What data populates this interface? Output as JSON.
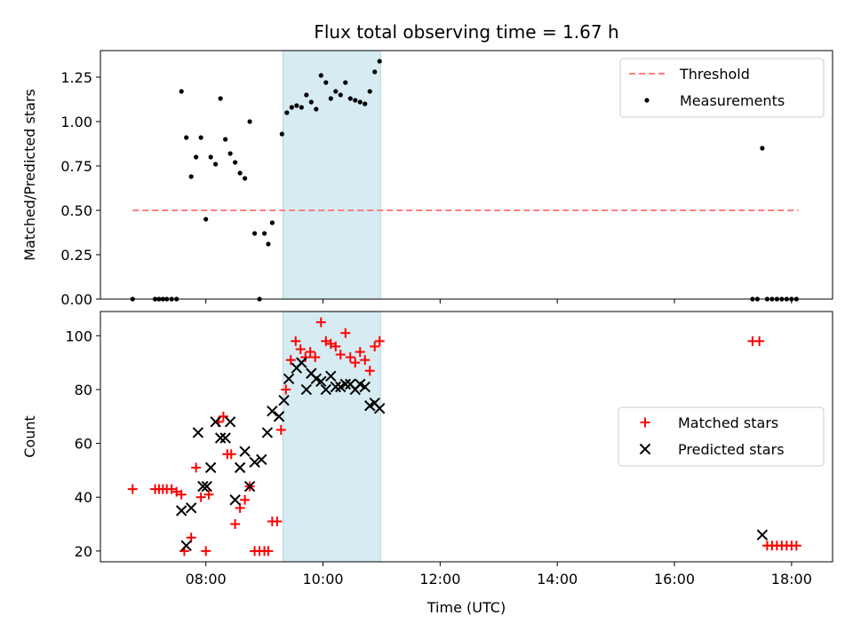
{
  "chart_data": [
    {
      "type": "scatter",
      "title": "Flux total observing time = 1.67 h",
      "xlabel": "",
      "ylabel": "Matched/Predicted stars",
      "xlim": [
        "06:12",
        "18:42"
      ],
      "ylim": [
        0,
        1.4
      ],
      "yticks": [
        "0.00",
        "0.25",
        "0.50",
        "0.75",
        "1.00",
        "1.25"
      ],
      "highlight_span": [
        "09:19",
        "10:59"
      ],
      "legend": {
        "position": "top-right",
        "entries": [
          "Threshold",
          "Measurements"
        ]
      },
      "series": [
        {
          "name": "Threshold",
          "style": "dashed line",
          "color": "#ff7f7f",
          "points": [
            [
              "06:45",
              0.5
            ],
            [
              "18:07",
              0.5
            ]
          ]
        },
        {
          "name": "Measurements",
          "style": "dots",
          "color": "#000000",
          "points": [
            [
              "06:45",
              0.0
            ],
            [
              "07:08",
              0.0
            ],
            [
              "07:12",
              0.0
            ],
            [
              "07:16",
              0.0
            ],
            [
              "07:20",
              0.0
            ],
            [
              "07:25",
              0.0
            ],
            [
              "07:30",
              0.0
            ],
            [
              "07:35",
              1.17
            ],
            [
              "07:40",
              0.91
            ],
            [
              "07:45",
              0.69
            ],
            [
              "07:50",
              0.8
            ],
            [
              "07:55",
              0.91
            ],
            [
              "08:00",
              0.45
            ],
            [
              "08:05",
              0.8
            ],
            [
              "08:10",
              0.76
            ],
            [
              "08:15",
              1.13
            ],
            [
              "08:20",
              0.9
            ],
            [
              "08:25",
              0.82
            ],
            [
              "08:30",
              0.77
            ],
            [
              "08:35",
              0.71
            ],
            [
              "08:40",
              0.68
            ],
            [
              "08:45",
              1.0
            ],
            [
              "08:50",
              0.37
            ],
            [
              "08:55",
              0.0
            ],
            [
              "09:00",
              0.37
            ],
            [
              "09:04",
              0.31
            ],
            [
              "09:08",
              0.43
            ],
            [
              "09:18",
              0.93
            ],
            [
              "09:23",
              1.05
            ],
            [
              "09:28",
              1.08
            ],
            [
              "09:33",
              1.09
            ],
            [
              "09:38",
              1.08
            ],
            [
              "09:43",
              1.15
            ],
            [
              "09:48",
              1.11
            ],
            [
              "09:53",
              1.07
            ],
            [
              "09:58",
              1.26
            ],
            [
              "10:03",
              1.22
            ],
            [
              "10:08",
              1.13
            ],
            [
              "10:13",
              1.17
            ],
            [
              "10:18",
              1.15
            ],
            [
              "10:23",
              1.22
            ],
            [
              "10:28",
              1.13
            ],
            [
              "10:33",
              1.12
            ],
            [
              "10:38",
              1.11
            ],
            [
              "10:43",
              1.1
            ],
            [
              "10:48",
              1.17
            ],
            [
              "10:53",
              1.28
            ],
            [
              "10:58",
              1.34
            ],
            [
              "17:20",
              0.0
            ],
            [
              "17:25",
              0.0
            ],
            [
              "17:30",
              0.85
            ],
            [
              "17:35",
              0.0
            ],
            [
              "17:40",
              0.0
            ],
            [
              "17:45",
              0.0
            ],
            [
              "17:50",
              0.0
            ],
            [
              "17:55",
              0.0
            ],
            [
              "18:00",
              0.0
            ],
            [
              "18:05",
              0.0
            ]
          ]
        }
      ]
    },
    {
      "type": "scatter",
      "title": "",
      "xlabel": "Time (UTC)",
      "ylabel": "Count",
      "xlim": [
        "06:12",
        "18:42"
      ],
      "ylim": [
        16,
        109
      ],
      "xticks": [
        "08:00",
        "10:00",
        "12:00",
        "14:00",
        "16:00",
        "18:00"
      ],
      "yticks": [
        "20",
        "40",
        "60",
        "80",
        "100"
      ],
      "highlight_span": [
        "09:19",
        "10:59"
      ],
      "legend": {
        "position": "center-right",
        "entries": [
          "Matched stars",
          "Predicted stars"
        ]
      },
      "series": [
        {
          "name": "Matched stars",
          "marker": "plus",
          "color": "#ff0000",
          "points": [
            [
              "06:45",
              43
            ],
            [
              "07:08",
              43
            ],
            [
              "07:12",
              43
            ],
            [
              "07:16",
              43
            ],
            [
              "07:20",
              43
            ],
            [
              "07:25",
              43
            ],
            [
              "07:30",
              42
            ],
            [
              "07:35",
              41
            ],
            [
              "07:38",
              20
            ],
            [
              "07:45",
              25
            ],
            [
              "07:50",
              51
            ],
            [
              "07:55",
              40
            ],
            [
              "08:00",
              20
            ],
            [
              "08:03",
              41
            ],
            [
              "08:13",
              68
            ],
            [
              "08:18",
              70
            ],
            [
              "08:22",
              56
            ],
            [
              "08:26",
              56
            ],
            [
              "08:30",
              30
            ],
            [
              "08:35",
              36
            ],
            [
              "08:40",
              39
            ],
            [
              "08:45",
              44
            ],
            [
              "08:50",
              20
            ],
            [
              "08:55",
              20
            ],
            [
              "09:00",
              20
            ],
            [
              "09:04",
              20
            ],
            [
              "09:08",
              31
            ],
            [
              "09:13",
              31
            ],
            [
              "09:17",
              65
            ],
            [
              "09:22",
              80
            ],
            [
              "09:27",
              91
            ],
            [
              "09:32",
              98
            ],
            [
              "09:37",
              95
            ],
            [
              "09:42",
              92
            ],
            [
              "09:47",
              94
            ],
            [
              "09:52",
              92
            ],
            [
              "09:58",
              105
            ],
            [
              "10:03",
              98
            ],
            [
              "10:08",
              97
            ],
            [
              "10:13",
              96
            ],
            [
              "10:18",
              93
            ],
            [
              "10:23",
              101
            ],
            [
              "10:28",
              92
            ],
            [
              "10:33",
              90
            ],
            [
              "10:38",
              94
            ],
            [
              "10:43",
              91
            ],
            [
              "10:48",
              87
            ],
            [
              "10:53",
              96
            ],
            [
              "10:58",
              98
            ],
            [
              "17:20",
              98
            ],
            [
              "17:27",
              98
            ],
            [
              "17:35",
              22
            ],
            [
              "17:40",
              22
            ],
            [
              "17:45",
              22
            ],
            [
              "17:50",
              22
            ],
            [
              "17:55",
              22
            ],
            [
              "18:00",
              22
            ],
            [
              "18:05",
              22
            ]
          ]
        },
        {
          "name": "Predicted stars",
          "marker": "x",
          "color": "#000000",
          "points": [
            [
              "07:35",
              35
            ],
            [
              "07:40",
              22
            ],
            [
              "07:45",
              36
            ],
            [
              "07:52",
              64
            ],
            [
              "07:57",
              44
            ],
            [
              "08:01",
              44
            ],
            [
              "08:05",
              51
            ],
            [
              "08:10",
              68
            ],
            [
              "08:15",
              62
            ],
            [
              "08:20",
              62
            ],
            [
              "08:25",
              68
            ],
            [
              "08:30",
              39
            ],
            [
              "08:35",
              51
            ],
            [
              "08:40",
              57
            ],
            [
              "08:45",
              44
            ],
            [
              "08:50",
              53
            ],
            [
              "08:57",
              54
            ],
            [
              "09:03",
              64
            ],
            [
              "09:08",
              72
            ],
            [
              "09:15",
              70
            ],
            [
              "09:20",
              76
            ],
            [
              "09:25",
              84
            ],
            [
              "09:33",
              88
            ],
            [
              "09:38",
              90
            ],
            [
              "09:43",
              80
            ],
            [
              "09:48",
              86
            ],
            [
              "09:53",
              84
            ],
            [
              "09:58",
              83
            ],
            [
              "10:03",
              80
            ],
            [
              "10:08",
              85
            ],
            [
              "10:13",
              81
            ],
            [
              "10:18",
              81
            ],
            [
              "10:23",
              82
            ],
            [
              "10:28",
              82
            ],
            [
              "10:33",
              80
            ],
            [
              "10:38",
              82
            ],
            [
              "10:43",
              81
            ],
            [
              "10:48",
              74
            ],
            [
              "10:53",
              75
            ],
            [
              "10:58",
              73
            ],
            [
              "17:30",
              26
            ]
          ]
        }
      ]
    }
  ]
}
